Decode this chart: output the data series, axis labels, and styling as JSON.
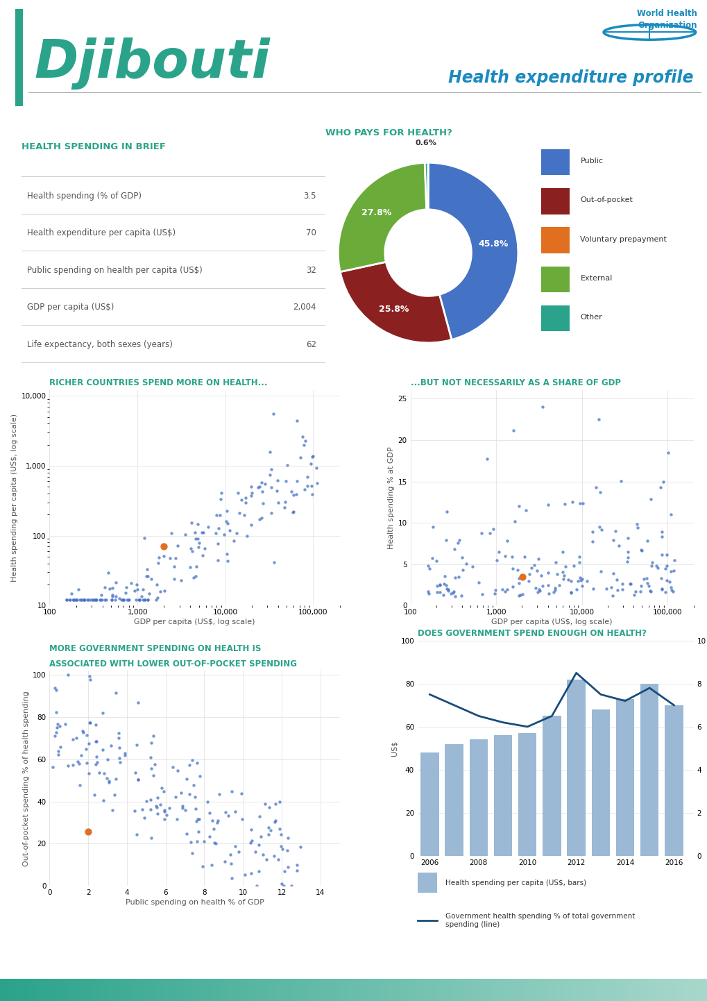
{
  "title": "Djibouti",
  "subtitle": "Health expenditure profile",
  "teal_color": "#2BA38B",
  "blue_color": "#1A8BBF",
  "table_title": "HEALTH SPENDING IN BRIEF",
  "table_rows": [
    [
      "Health spending (% of GDP)",
      "3.5"
    ],
    [
      "Health expenditure per capita (US$)",
      "70"
    ],
    [
      "Public spending on health per capita (US$)",
      "32"
    ],
    [
      "GDP per capita (US$)",
      "2,004"
    ],
    [
      "Life expectancy, both sexes (years)",
      "62"
    ]
  ],
  "pie_title": "WHO PAYS FOR HEALTH?",
  "pie_values": [
    45.8,
    25.8,
    27.8,
    0.6,
    0.0
  ],
  "pie_labels_inside": [
    "45.8%",
    "25.8%",
    "27.8%",
    "",
    ""
  ],
  "pie_label_outside": "0.6%",
  "pie_colors": [
    "#4472C4",
    "#8B2020",
    "#6AAB3A",
    "#2BA38B",
    "#E07020"
  ],
  "pie_legend_items": [
    [
      "Public",
      "#4472C4"
    ],
    [
      "Out-of-pocket",
      "#8B2020"
    ],
    [
      "Voluntary prepayment",
      "#E07020"
    ],
    [
      "External",
      "#6AAB3A"
    ],
    [
      "Other",
      "#2BA38B"
    ]
  ],
  "scatter1_title": "RICHER COUNTRIES SPEND MORE ON HEALTH...",
  "scatter1_xlabel": "GDP per capita (US$, log scale)",
  "scatter1_ylabel": "Health spending per capita (US$, log scale)",
  "scatter2_title": "...BUT NOT NECESSARILY AS A SHARE OF GDP",
  "scatter2_xlabel": "GDP per capita (US$, log scale)",
  "scatter2_ylabel": "Health spending % at GDP",
  "scatter3_title_line1": "MORE GOVERNMENT SPENDING ON HEALTH IS",
  "scatter3_title_line2": "ASSOCIATED WITH LOWER OUT-OF-POCKET SPENDING",
  "scatter3_xlabel": "Public spending on health % of GDP",
  "scatter3_ylabel": "Out-of-pocket spending % of health spending",
  "bar_title": "DOES GOVERNMENT SPEND ENOUGH ON HEALTH?",
  "bar_ylabel1": "US$",
  "bar_ylabel2": "%",
  "bar_years": [
    2006,
    2007,
    2008,
    2009,
    2010,
    2011,
    2012,
    2013,
    2014,
    2015,
    2016
  ],
  "bar_values": [
    48,
    52,
    54,
    56,
    57,
    65,
    82,
    68,
    73,
    80,
    70
  ],
  "line_values": [
    7.5,
    7.0,
    6.5,
    6.2,
    6.0,
    6.5,
    8.5,
    7.5,
    7.2,
    7.8,
    7.0
  ],
  "bar_color": "#9BB8D4",
  "line_color": "#1A4C7A",
  "dot_color": "#4472C4",
  "highlight_color": "#E07020",
  "djibouti_gdp": 2004,
  "djibouti_health_spend": 70,
  "djibouti_health_pct": 3.5,
  "djibouti_public_pct": 2.0,
  "djibouti_oop": 25.8,
  "grid_color": "#DDDDDD",
  "line_sep_color": "#CCCCCC"
}
